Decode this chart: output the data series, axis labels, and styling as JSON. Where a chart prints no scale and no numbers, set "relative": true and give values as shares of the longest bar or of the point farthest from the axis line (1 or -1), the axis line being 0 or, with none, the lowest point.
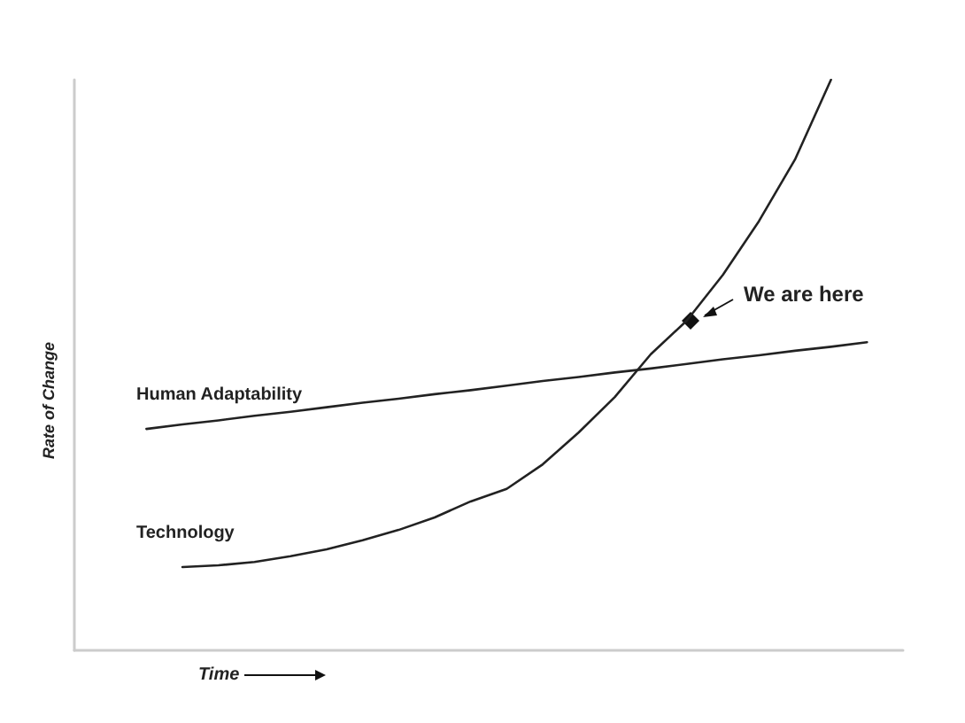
{
  "chart_data": {
    "type": "line",
    "relative": true,
    "xlabel": "Time",
    "ylabel": "Rate of Change",
    "categories": [
      null,
      null,
      null,
      null,
      null,
      null,
      null,
      null,
      null,
      null,
      null,
      null,
      null,
      null,
      null,
      null,
      null,
      null,
      null,
      null,
      null,
      null,
      null,
      null
    ],
    "series": [
      {
        "name": "Human Adaptability",
        "color": "#222222",
        "values": [
          null,
          null,
          0.388,
          0.396,
          0.403,
          0.411,
          0.418,
          0.426,
          0.434,
          0.441,
          0.449,
          0.456,
          0.464,
          0.472,
          0.479,
          0.487,
          0.494,
          0.502,
          0.51,
          0.517,
          0.525,
          0.532,
          0.54,
          null
        ]
      },
      {
        "name": "Technology",
        "color": "#222222",
        "values": [
          null,
          null,
          null,
          0.146,
          0.149,
          0.155,
          0.165,
          0.177,
          0.193,
          0.211,
          0.233,
          0.261,
          0.283,
          0.326,
          0.382,
          0.444,
          0.519,
          0.578,
          0.658,
          0.752,
          0.86,
          1,
          null,
          null
        ]
      }
    ],
    "annotations": [
      "We are here"
    ],
    "grid": false,
    "legend": false,
    "marker": "none",
    "line_style": "solid"
  }
}
